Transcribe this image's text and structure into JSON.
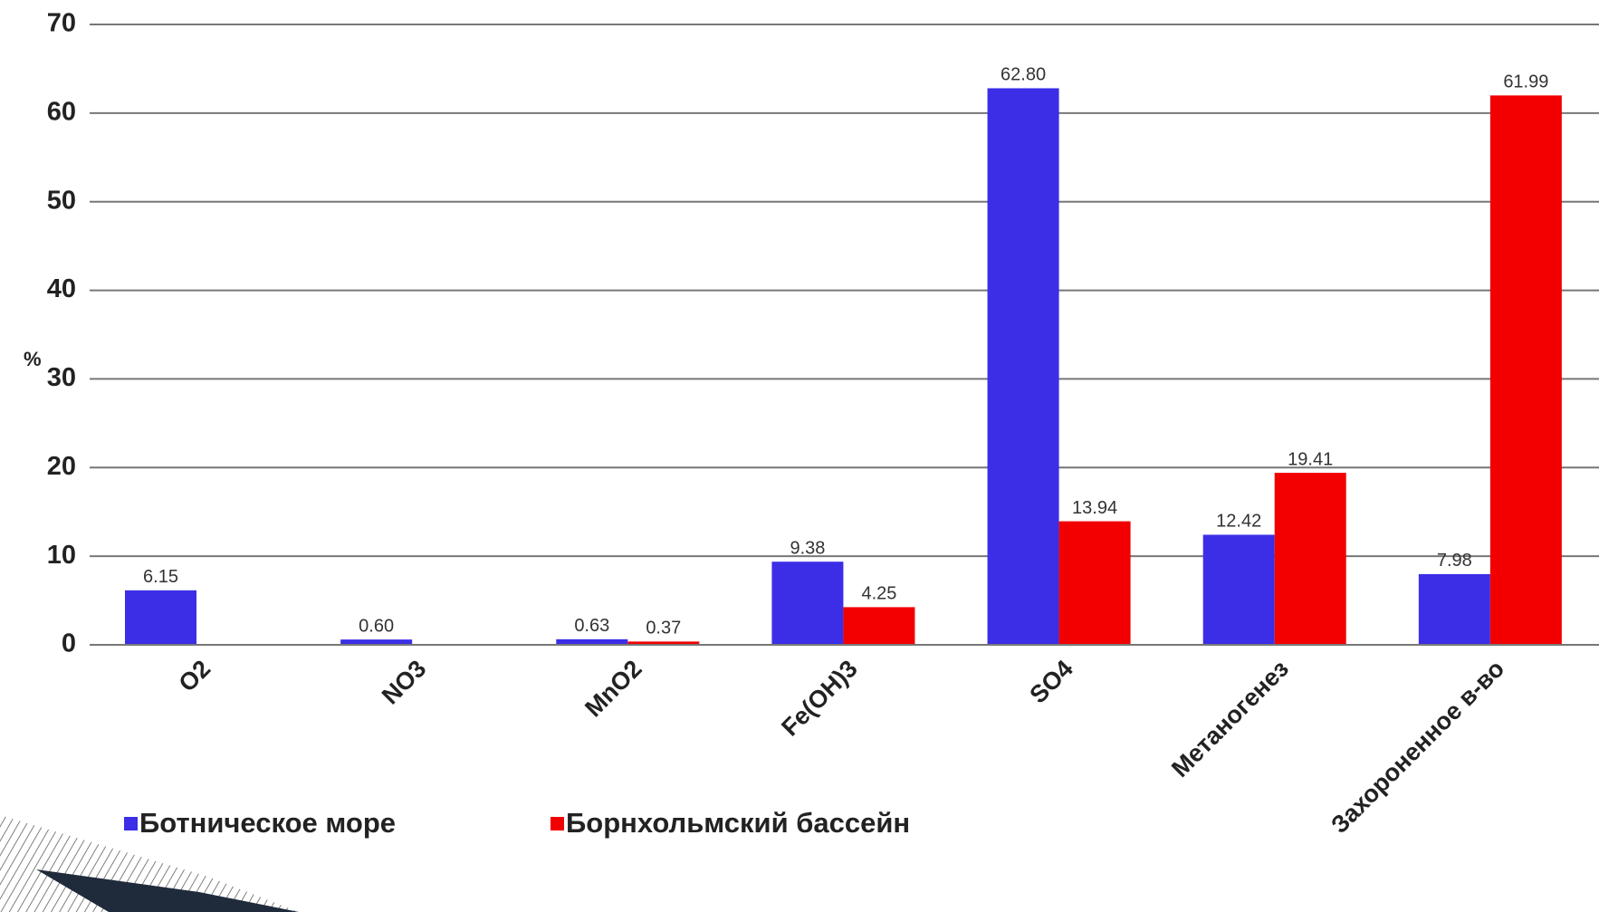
{
  "chart_data": {
    "type": "bar",
    "y_label": "%",
    "categories": [
      "O2",
      "NO3",
      "MnO2",
      "Fe(OH)3",
      "SO4",
      "Метаногенез",
      "Захороненное в-во"
    ],
    "series": [
      {
        "name": "Ботническое море",
        "color": "#3b2ee6",
        "values": [
          6.15,
          0.6,
          0.63,
          9.38,
          62.8,
          12.42,
          7.98
        ],
        "value_labels": [
          "6.15",
          "0.60",
          "0.63",
          "9.38",
          "62.80",
          "12.42",
          "7.98"
        ]
      },
      {
        "name": "Борнхольмский бассейн",
        "color": "#f20000",
        "values": [
          null,
          null,
          0.37,
          4.25,
          13.94,
          19.41,
          61.99
        ],
        "value_labels": [
          null,
          null,
          "0.37",
          "4.25",
          "13.94",
          "19.41",
          "61.99"
        ]
      }
    ],
    "ylim": [
      0,
      70
    ],
    "yticks": [
      0,
      10,
      20,
      30,
      40,
      50,
      60,
      70
    ],
    "grid": true
  }
}
